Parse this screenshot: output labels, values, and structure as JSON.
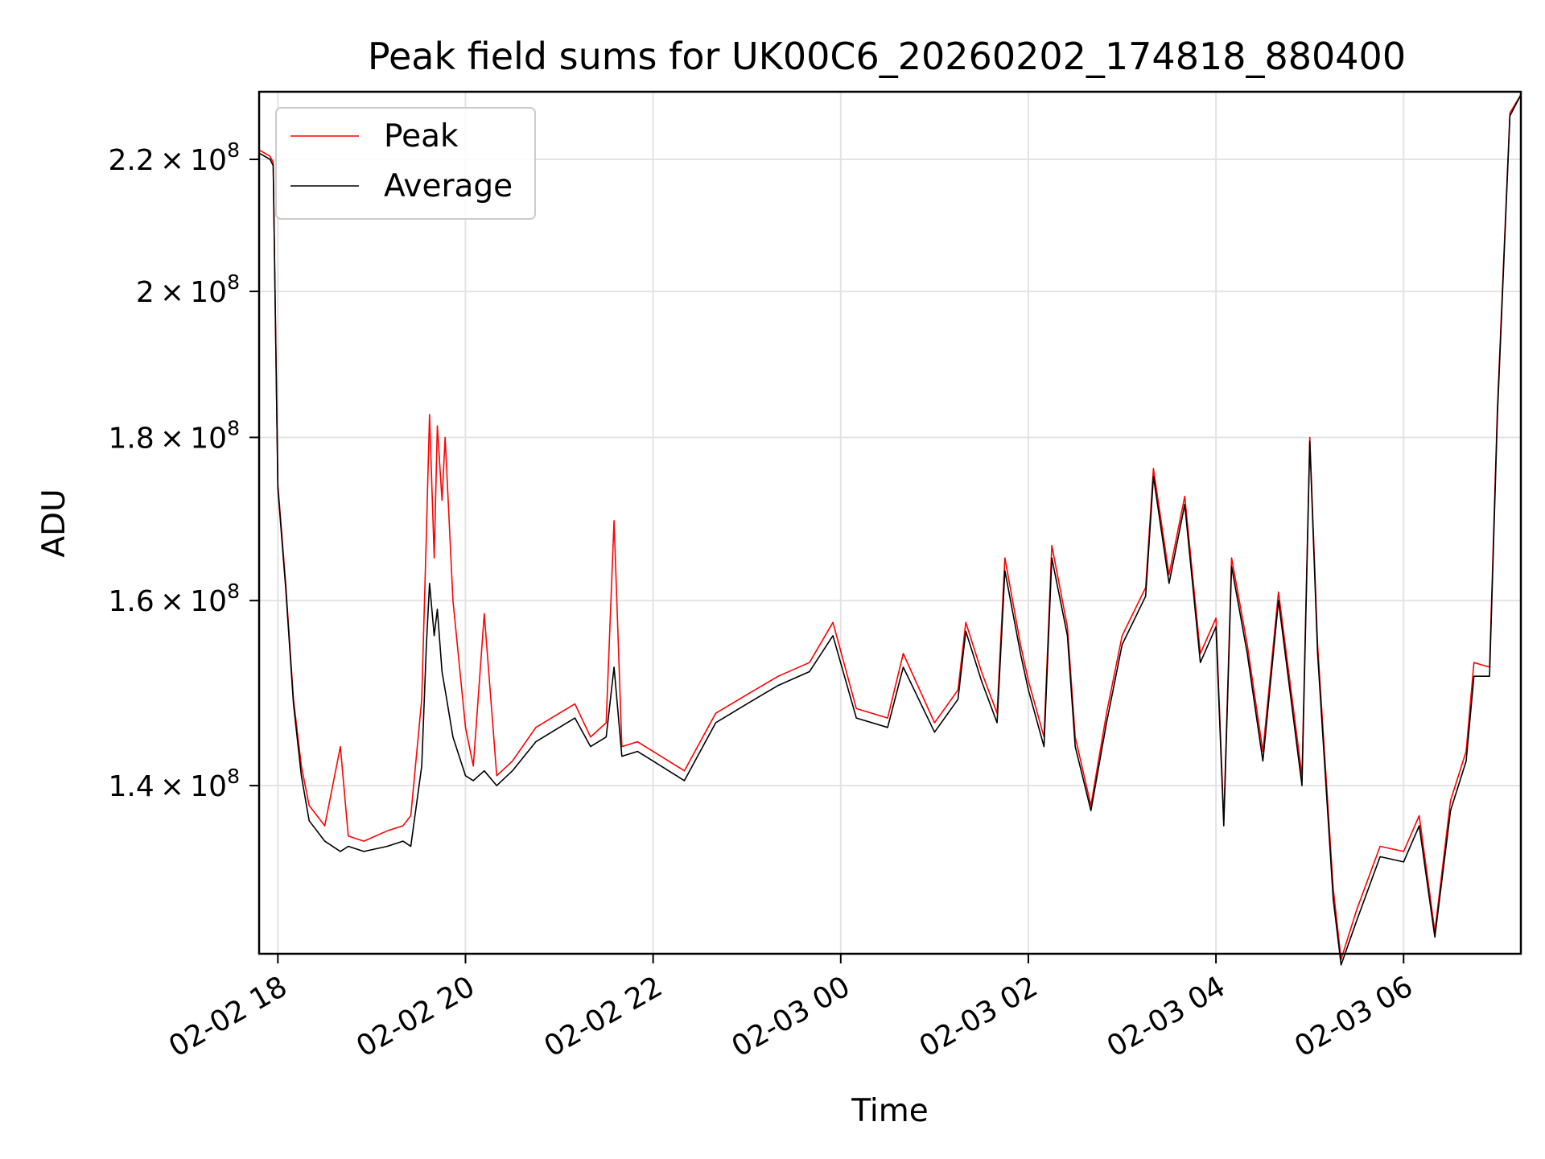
{
  "chart_data": {
    "type": "line",
    "title": "Peak field sums for UK00C6_20260202_174818_880400",
    "xlabel": "Time",
    "ylabel": "ADU",
    "y_scale": "log",
    "xlim": [
      "2026-02-02 17:48",
      "2026-02-03 07:15"
    ],
    "ylim": [
      124000000,
      231000000
    ],
    "x_ticks": [
      "02-02 18",
      "02-02 20",
      "02-02 22",
      "02-03 00",
      "02-03 02",
      "02-03 04",
      "02-03 06"
    ],
    "x_tick_values": [
      "2026-02-02 18:00",
      "2026-02-02 20:00",
      "2026-02-02 22:00",
      "2026-02-03 00:00",
      "2026-02-03 02:00",
      "2026-02-03 04:00",
      "2026-02-03 06:00"
    ],
    "y_ticks": [
      {
        "value": 140000000,
        "mantissa": "1.4",
        "exp": "8"
      },
      {
        "value": 160000000,
        "mantissa": "1.6",
        "exp": "8"
      },
      {
        "value": 180000000,
        "mantissa": "1.8",
        "exp": "8"
      },
      {
        "value": 200000000,
        "mantissa": "2",
        "exp": "8"
      },
      {
        "value": 220000000,
        "mantissa": "2.2",
        "exp": "8"
      }
    ],
    "grid": true,
    "legend_position": "top-left",
    "series": [
      {
        "name": "Peak",
        "color": "#ff0000",
        "points": [
          [
            "2026-02-02 17:48",
            221500000
          ],
          [
            "2026-02-02 17:55",
            220500000
          ],
          [
            "2026-02-02 17:57",
            219500000
          ],
          [
            "2026-02-02 18:00",
            174000000
          ],
          [
            "2026-02-02 18:05",
            162000000
          ],
          [
            "2026-02-02 18:10",
            149000000
          ],
          [
            "2026-02-02 18:15",
            142000000
          ],
          [
            "2026-02-02 18:20",
            138000000
          ],
          [
            "2026-02-02 18:30",
            136000000
          ],
          [
            "2026-02-02 18:40",
            144000000
          ],
          [
            "2026-02-02 18:45",
            135000000
          ],
          [
            "2026-02-02 18:55",
            134500000
          ],
          [
            "2026-02-02 19:10",
            135500000
          ],
          [
            "2026-02-02 19:20",
            136000000
          ],
          [
            "2026-02-02 19:25",
            137000000
          ],
          [
            "2026-02-02 19:32",
            149000000
          ],
          [
            "2026-02-02 19:35",
            168000000
          ],
          [
            "2026-02-02 19:37",
            183000000
          ],
          [
            "2026-02-02 19:40",
            165000000
          ],
          [
            "2026-02-02 19:42",
            181500000
          ],
          [
            "2026-02-02 19:45",
            172000000
          ],
          [
            "2026-02-02 19:47",
            180000000
          ],
          [
            "2026-02-02 19:52",
            160000000
          ],
          [
            "2026-02-02 20:00",
            146000000
          ],
          [
            "2026-02-02 20:05",
            142000000
          ],
          [
            "2026-02-02 20:12",
            158500000
          ],
          [
            "2026-02-02 20:20",
            141000000
          ],
          [
            "2026-02-02 20:30",
            142500000
          ],
          [
            "2026-02-02 20:45",
            146000000
          ],
          [
            "2026-02-02 21:00",
            147500000
          ],
          [
            "2026-02-02 21:10",
            148500000
          ],
          [
            "2026-02-02 21:20",
            145000000
          ],
          [
            "2026-02-02 21:30",
            146500000
          ],
          [
            "2026-02-02 21:35",
            169500000
          ],
          [
            "2026-02-02 21:40",
            144000000
          ],
          [
            "2026-02-02 21:50",
            144500000
          ],
          [
            "2026-02-02 22:00",
            143500000
          ],
          [
            "2026-02-02 22:20",
            141500000
          ],
          [
            "2026-02-02 22:40",
            147500000
          ],
          [
            "2026-02-02 23:00",
            149500000
          ],
          [
            "2026-02-02 23:20",
            151500000
          ],
          [
            "2026-02-02 23:40",
            153000000
          ],
          [
            "2026-02-02 23:55",
            157500000
          ],
          [
            "2026-02-03 00:10",
            148000000
          ],
          [
            "2026-02-03 00:30",
            147000000
          ],
          [
            "2026-02-03 00:40",
            154000000
          ],
          [
            "2026-02-03 01:00",
            146500000
          ],
          [
            "2026-02-03 01:15",
            150000000
          ],
          [
            "2026-02-03 01:20",
            157500000
          ],
          [
            "2026-02-03 01:30",
            152000000
          ],
          [
            "2026-02-03 01:40",
            147500000
          ],
          [
            "2026-02-03 01:45",
            165000000
          ],
          [
            "2026-02-03 01:55",
            155000000
          ],
          [
            "2026-02-03 02:00",
            151000000
          ],
          [
            "2026-02-03 02:10",
            145000000
          ],
          [
            "2026-02-03 02:15",
            166500000
          ],
          [
            "2026-02-03 02:25",
            157000000
          ],
          [
            "2026-02-03 02:30",
            145000000
          ],
          [
            "2026-02-03 02:40",
            138000000
          ],
          [
            "2026-02-03 02:50",
            147500000
          ],
          [
            "2026-02-03 03:00",
            156000000
          ],
          [
            "2026-02-03 03:15",
            161500000
          ],
          [
            "2026-02-03 03:20",
            176000000
          ],
          [
            "2026-02-03 03:30",
            163000000
          ],
          [
            "2026-02-03 03:40",
            172500000
          ],
          [
            "2026-02-03 03:50",
            154000000
          ],
          [
            "2026-02-03 04:00",
            158000000
          ],
          [
            "2026-02-03 04:05",
            136500000
          ],
          [
            "2026-02-03 04:10",
            165000000
          ],
          [
            "2026-02-03 04:20",
            155000000
          ],
          [
            "2026-02-03 04:30",
            143500000
          ],
          [
            "2026-02-03 04:40",
            161000000
          ],
          [
            "2026-02-03 04:55",
            141000000
          ],
          [
            "2026-02-03 05:00",
            180000000
          ],
          [
            "2026-02-03 05:05",
            155000000
          ],
          [
            "2026-02-03 05:15",
            130000000
          ],
          [
            "2026-02-03 05:20",
            123500000
          ],
          [
            "2026-02-03 05:30",
            128000000
          ],
          [
            "2026-02-03 05:45",
            134000000
          ],
          [
            "2026-02-03 06:00",
            133500000
          ],
          [
            "2026-02-03 06:10",
            137000000
          ],
          [
            "2026-02-03 06:20",
            126000000
          ],
          [
            "2026-02-03 06:30",
            138500000
          ],
          [
            "2026-02-03 06:40",
            143500000
          ],
          [
            "2026-02-03 06:45",
            153000000
          ],
          [
            "2026-02-03 06:55",
            152500000
          ],
          [
            "2026-02-03 07:00",
            184000000
          ],
          [
            "2026-02-03 07:08",
            227500000
          ],
          [
            "2026-02-03 07:15",
            230500000
          ]
        ]
      },
      {
        "name": "Average",
        "color": "#000000",
        "points": [
          [
            "2026-02-02 17:48",
            221000000
          ],
          [
            "2026-02-02 17:55",
            220000000
          ],
          [
            "2026-02-02 17:57",
            219000000
          ],
          [
            "2026-02-02 18:00",
            173500000
          ],
          [
            "2026-02-02 18:05",
            161500000
          ],
          [
            "2026-02-02 18:10",
            148500000
          ],
          [
            "2026-02-02 18:15",
            141000000
          ],
          [
            "2026-02-02 18:20",
            136500000
          ],
          [
            "2026-02-02 18:30",
            134500000
          ],
          [
            "2026-02-02 18:40",
            133500000
          ],
          [
            "2026-02-02 18:45",
            134000000
          ],
          [
            "2026-02-02 18:55",
            133500000
          ],
          [
            "2026-02-02 19:10",
            134000000
          ],
          [
            "2026-02-02 19:20",
            134500000
          ],
          [
            "2026-02-02 19:25",
            134000000
          ],
          [
            "2026-02-02 19:32",
            142000000
          ],
          [
            "2026-02-02 19:35",
            155000000
          ],
          [
            "2026-02-02 19:37",
            162000000
          ],
          [
            "2026-02-02 19:40",
            156000000
          ],
          [
            "2026-02-02 19:42",
            159000000
          ],
          [
            "2026-02-02 19:45",
            152000000
          ],
          [
            "2026-02-02 19:47",
            150000000
          ],
          [
            "2026-02-02 19:52",
            145000000
          ],
          [
            "2026-02-02 20:00",
            141000000
          ],
          [
            "2026-02-02 20:05",
            140500000
          ],
          [
            "2026-02-02 20:12",
            141500000
          ],
          [
            "2026-02-02 20:20",
            140000000
          ],
          [
            "2026-02-02 20:30",
            141500000
          ],
          [
            "2026-02-02 20:45",
            144500000
          ],
          [
            "2026-02-02 21:00",
            146000000
          ],
          [
            "2026-02-02 21:10",
            147000000
          ],
          [
            "2026-02-02 21:20",
            144000000
          ],
          [
            "2026-02-02 21:30",
            145000000
          ],
          [
            "2026-02-02 21:35",
            152500000
          ],
          [
            "2026-02-02 21:40",
            143000000
          ],
          [
            "2026-02-02 21:50",
            143500000
          ],
          [
            "2026-02-02 22:00",
            142500000
          ],
          [
            "2026-02-02 22:20",
            140500000
          ],
          [
            "2026-02-02 22:40",
            146500000
          ],
          [
            "2026-02-02 23:00",
            148500000
          ],
          [
            "2026-02-02 23:20",
            150500000
          ],
          [
            "2026-02-02 23:40",
            152000000
          ],
          [
            "2026-02-02 23:55",
            156000000
          ],
          [
            "2026-02-03 00:10",
            147000000
          ],
          [
            "2026-02-03 00:30",
            146000000
          ],
          [
            "2026-02-03 00:40",
            152500000
          ],
          [
            "2026-02-03 01:00",
            145500000
          ],
          [
            "2026-02-03 01:15",
            149000000
          ],
          [
            "2026-02-03 01:20",
            156500000
          ],
          [
            "2026-02-03 01:30",
            151000000
          ],
          [
            "2026-02-03 01:40",
            146500000
          ],
          [
            "2026-02-03 01:45",
            163500000
          ],
          [
            "2026-02-03 01:55",
            154000000
          ],
          [
            "2026-02-03 02:00",
            150000000
          ],
          [
            "2026-02-03 02:10",
            144000000
          ],
          [
            "2026-02-03 02:15",
            165000000
          ],
          [
            "2026-02-03 02:25",
            156000000
          ],
          [
            "2026-02-03 02:30",
            144000000
          ],
          [
            "2026-02-03 02:40",
            137500000
          ],
          [
            "2026-02-03 02:50",
            146500000
          ],
          [
            "2026-02-03 03:00",
            155000000
          ],
          [
            "2026-02-03 03:15",
            160500000
          ],
          [
            "2026-02-03 03:20",
            175000000
          ],
          [
            "2026-02-03 03:30",
            162000000
          ],
          [
            "2026-02-03 03:40",
            171500000
          ],
          [
            "2026-02-03 03:50",
            153000000
          ],
          [
            "2026-02-03 04:00",
            157000000
          ],
          [
            "2026-02-03 04:05",
            136000000
          ],
          [
            "2026-02-03 04:10",
            164000000
          ],
          [
            "2026-02-03 04:20",
            154000000
          ],
          [
            "2026-02-03 04:30",
            142500000
          ],
          [
            "2026-02-03 04:40",
            160000000
          ],
          [
            "2026-02-03 04:55",
            140000000
          ],
          [
            "2026-02-03 05:00",
            179500000
          ],
          [
            "2026-02-03 05:05",
            154000000
          ],
          [
            "2026-02-03 05:15",
            129000000
          ],
          [
            "2026-02-03 05:20",
            123000000
          ],
          [
            "2026-02-03 05:30",
            127000000
          ],
          [
            "2026-02-03 05:45",
            133000000
          ],
          [
            "2026-02-03 06:00",
            132500000
          ],
          [
            "2026-02-03 06:10",
            136000000
          ],
          [
            "2026-02-03 06:20",
            125500000
          ],
          [
            "2026-02-03 06:30",
            137500000
          ],
          [
            "2026-02-03 06:40",
            142500000
          ],
          [
            "2026-02-03 06:45",
            151500000
          ],
          [
            "2026-02-03 06:55",
            151500000
          ],
          [
            "2026-02-03 07:00",
            183000000
          ],
          [
            "2026-02-03 07:08",
            227000000
          ],
          [
            "2026-02-03 07:15",
            230500000
          ]
        ]
      }
    ]
  }
}
